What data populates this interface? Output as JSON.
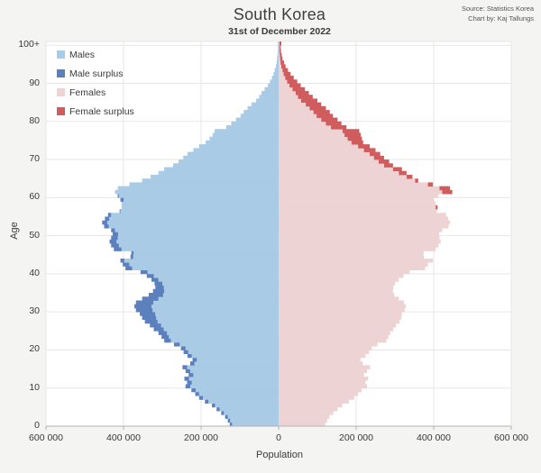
{
  "header": {
    "title": "South Korea",
    "subtitle": "31st of December 2022",
    "source_line1": "Source: Statistics Korea",
    "source_line2": "Chart by: Kaj Tallungs"
  },
  "axes": {
    "x_label": "Population",
    "y_label": "Age",
    "x_tick_values": [
      -600000,
      -400000,
      -200000,
      0,
      200000,
      400000,
      600000
    ],
    "x_tick_labels": [
      "600 000",
      "400 000",
      "200 000",
      "0",
      "200 000",
      "400 000",
      "600 000"
    ],
    "y_tick_values": [
      0,
      10,
      20,
      30,
      40,
      50,
      60,
      70,
      80,
      90,
      100
    ],
    "y_tick_labels": [
      "0",
      "10",
      "20",
      "30",
      "40",
      "50",
      "60",
      "70",
      "80",
      "90",
      "100+"
    ]
  },
  "legend": {
    "items": [
      {
        "label": "Males",
        "color": "#a9cbe5"
      },
      {
        "label": "Male surplus",
        "color": "#5c80bd"
      },
      {
        "label": "Females",
        "color": "#edd3d4"
      },
      {
        "label": "Female surplus",
        "color": "#d05c5e"
      }
    ]
  },
  "colors": {
    "page_bg": "#f4f4f3",
    "plot_bg": "#ffffff",
    "grid": "#e7e7e7",
    "axis": "#b3b3b3",
    "males": "#a9cbe5",
    "male_surplus": "#5c80bd",
    "females": "#edd3d4",
    "female_surplus": "#d05c5e"
  },
  "chart_data": {
    "type": "bar",
    "variant": "population-pyramid",
    "title": "South Korea",
    "subtitle": "31st of December 2022",
    "xlabel": "Population",
    "ylabel": "Age",
    "x_range": [
      -600000,
      600000
    ],
    "age_range": [
      0,
      100
    ],
    "ages_note": "index = single year of age, 0 through 100 (top bin is 100+)",
    "legend_position": "top-left inside plot",
    "grid": true,
    "series": [
      {
        "name": "Males",
        "values": [
          126000,
          131000,
          138000,
          148000,
          160000,
          172000,
          190000,
          205000,
          215000,
          225000,
          240000,
          236000,
          243000,
          232000,
          240000,
          248000,
          228000,
          222000,
          235000,
          245000,
          252000,
          270000,
          295000,
          302000,
          310000,
          322000,
          332000,
          345000,
          352000,
          358000,
          368000,
          372000,
          368000,
          352000,
          335000,
          324000,
          318000,
          320000,
          328000,
          340000,
          356000,
          395000,
          402000,
          408000,
          382000,
          380000,
          425000,
          432000,
          436000,
          432000,
          428000,
          432000,
          450000,
          455000,
          448000,
          440000,
          410000,
          405000,
          405000,
          408000,
          415000,
          422000,
          415000,
          385000,
          352000,
          330000,
          310000,
          295000,
          272000,
          258000,
          246000,
          235000,
          220000,
          205000,
          188000,
          178000,
          170000,
          165000,
          135000,
          122000,
          110000,
          98000,
          90000,
          80000,
          70000,
          58000,
          50000,
          44000,
          36000,
          28000,
          22000,
          17000,
          13000,
          10000,
          7000,
          5000,
          4000,
          3000,
          2000,
          2000,
          2000
        ]
      },
      {
        "name": "Females",
        "values": [
          120000,
          125000,
          131000,
          141000,
          152000,
          164000,
          181000,
          195000,
          205000,
          214000,
          228000,
          224000,
          231000,
          220000,
          228000,
          236000,
          217000,
          211000,
          224000,
          233000,
          240000,
          255000,
          278000,
          283000,
          288000,
          296000,
          303000,
          312000,
          316000,
          318000,
          325000,
          328000,
          323000,
          310000,
          298000,
          295000,
          296000,
          300000,
          310000,
          322000,
          338000,
          378000,
          385000,
          398000,
          375000,
          374000,
          405000,
          412000,
          418000,
          415000,
          414000,
          422000,
          438000,
          442000,
          437000,
          432000,
          408000,
          410000,
          405000,
          400000,
          412000,
          448000,
          442000,
          398000,
          360000,
          345000,
          330000,
          318000,
          295000,
          285000,
          272000,
          262000,
          250000,
          235000,
          218000,
          215000,
          212000,
          208000,
          175000,
          162000,
          152000,
          140000,
          132000,
          122000,
          110000,
          100000,
          88000,
          78000,
          68000,
          57000,
          48000,
          39000,
          31000,
          24000,
          18000,
          14000,
          10000,
          8000,
          6000,
          5000,
          7000
        ]
      }
    ]
  }
}
